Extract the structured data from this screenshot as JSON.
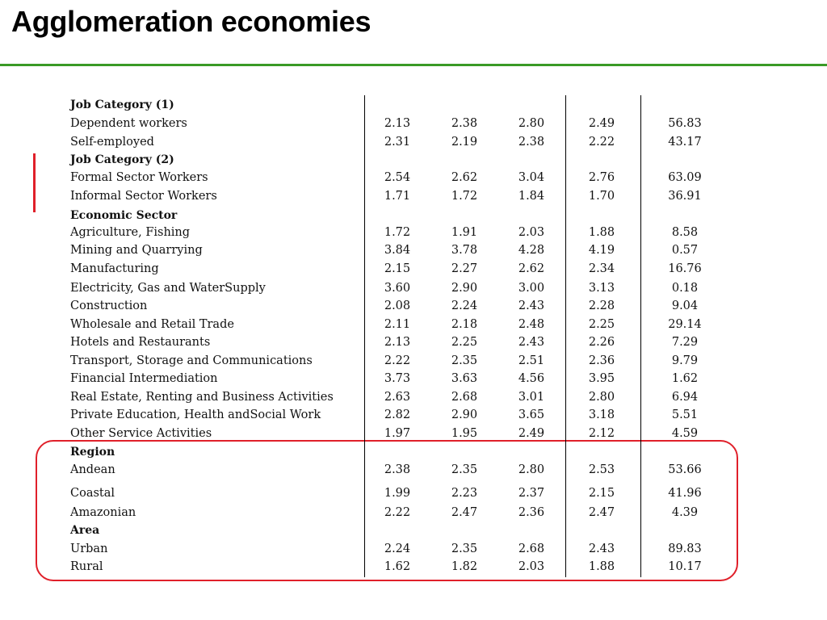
{
  "title": "Agglomeration economies",
  "table": {
    "rows": [
      {
        "label": "Job Category (1)",
        "header": true,
        "values": []
      },
      {
        "label": "Dependent workers",
        "values": [
          "2.13",
          "2.38",
          "2.80",
          "2.49",
          "56.83"
        ]
      },
      {
        "label": "Self-employed",
        "values": [
          "2.31",
          "2.19",
          "2.38",
          "2.22",
          "43.17"
        ]
      },
      {
        "label": "Job Category (2)",
        "header": true,
        "values": []
      },
      {
        "label": "Formal Sector Workers",
        "values": [
          "2.54",
          "2.62",
          "3.04",
          "2.76",
          "63.09"
        ]
      },
      {
        "label": "Informal Sector Workers",
        "values": [
          "1.71",
          "1.72",
          "1.84",
          "1.70",
          "36.91"
        ]
      },
      {
        "label": "Economic Sector",
        "header": true,
        "values": []
      },
      {
        "label": "Agriculture, Fishing",
        "values": [
          "1.72",
          "1.91",
          "2.03",
          "1.88",
          "8.58"
        ]
      },
      {
        "label": "Mining and Quarrying",
        "values": [
          "3.84",
          "3.78",
          "4.28",
          "4.19",
          "0.57"
        ]
      },
      {
        "label": "Manufacturing",
        "values": [
          "2.15",
          "2.27",
          "2.62",
          "2.34",
          "16.76"
        ]
      },
      {
        "label": "Electricity, Gas and WaterSupply",
        "values": [
          "3.60",
          "2.90",
          "3.00",
          "3.13",
          "0.18"
        ]
      },
      {
        "label": "Construction",
        "values": [
          "2.08",
          "2.24",
          "2.43",
          "2.28",
          "9.04"
        ]
      },
      {
        "label": "Wholesale and Retail Trade",
        "values": [
          "2.11",
          "2.18",
          "2.48",
          "2.25",
          "29.14"
        ]
      },
      {
        "label": "Hotels and Restaurants",
        "values": [
          "2.13",
          "2.25",
          "2.43",
          "2.26",
          "7.29"
        ]
      },
      {
        "label": "Transport, Storage and Communications",
        "values": [
          "2.22",
          "2.35",
          "2.51",
          "2.36",
          "9.79"
        ]
      },
      {
        "label": "Financial Intermediation",
        "values": [
          "3.73",
          "3.63",
          "4.56",
          "3.95",
          "1.62"
        ]
      },
      {
        "label": "Real Estate, Renting and Business Activities",
        "values": [
          "2.63",
          "2.68",
          "3.01",
          "2.80",
          "6.94"
        ]
      },
      {
        "label": "Private Education, Health andSocial Work",
        "values": [
          "2.82",
          "2.90",
          "3.65",
          "3.18",
          "5.51"
        ]
      },
      {
        "label": "Other Service Activities",
        "values": [
          "1.97",
          "1.95",
          "2.49",
          "2.12",
          "4.59"
        ]
      },
      {
        "label": "Region",
        "header": true,
        "values": []
      },
      {
        "label": "Andean",
        "values": [
          "2.38",
          "2.35",
          "2.80",
          "2.53",
          "53.66"
        ]
      },
      {
        "label": "Coastal",
        "values": [
          "1.99",
          "2.23",
          "2.37",
          "2.15",
          "41.96"
        ]
      },
      {
        "label": "Amazonian",
        "values": [
          "2.22",
          "2.47",
          "2.36",
          "2.47",
          "4.39"
        ]
      },
      {
        "label": "Area",
        "header": true,
        "values": []
      },
      {
        "label": "Urban",
        "values": [
          "2.24",
          "2.35",
          "2.68",
          "2.43",
          "89.83"
        ]
      },
      {
        "label": "Rural",
        "values": [
          "1.62",
          "1.82",
          "2.03",
          "1.88",
          "10.17"
        ]
      }
    ]
  },
  "colors": {
    "title_rule": "#3a9a26",
    "highlight": "#e0202a"
  }
}
